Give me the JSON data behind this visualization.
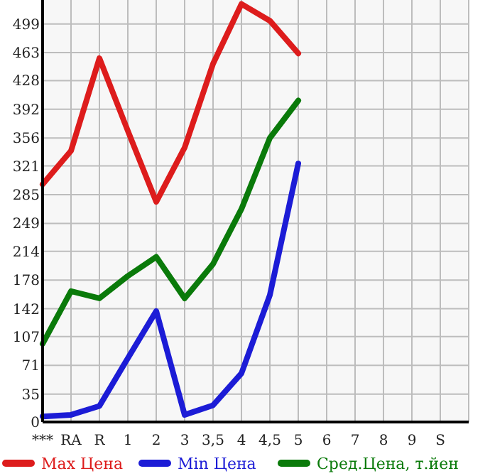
{
  "chart_data": {
    "type": "line",
    "categories": [
      "***",
      "RA",
      "R",
      "1",
      "2",
      "3",
      "3,5",
      "4",
      "4,5",
      "5",
      "6",
      "7",
      "8",
      "9",
      "S"
    ],
    "series": [
      {
        "name": "Max Цена",
        "color": "#dd1c1c",
        "values": [
          298,
          340,
          456,
          365,
          276,
          344,
          449,
          524,
          503,
          462,
          null,
          null,
          null,
          null,
          null
        ]
      },
      {
        "name": "Min Цена",
        "color": "#1c1cd6",
        "values": [
          7,
          9,
          20,
          80,
          139,
          9,
          21,
          61,
          159,
          324,
          null,
          null,
          null,
          null,
          null
        ]
      },
      {
        "name": "Сред.Цена, т.йен",
        "color": "#0a7a0a",
        "values": [
          98,
          164,
          155,
          183,
          207,
          155,
          198,
          267,
          356,
          403,
          null,
          null,
          null,
          null,
          null
        ]
      }
    ],
    "ylim": [
      0,
      529
    ],
    "yticks": [
      0,
      35,
      71,
      107,
      142,
      178,
      214,
      249,
      285,
      321,
      356,
      392,
      428,
      463,
      499
    ],
    "grid": true,
    "legend": "bottom",
    "marker": "none",
    "line_style": "solid"
  }
}
